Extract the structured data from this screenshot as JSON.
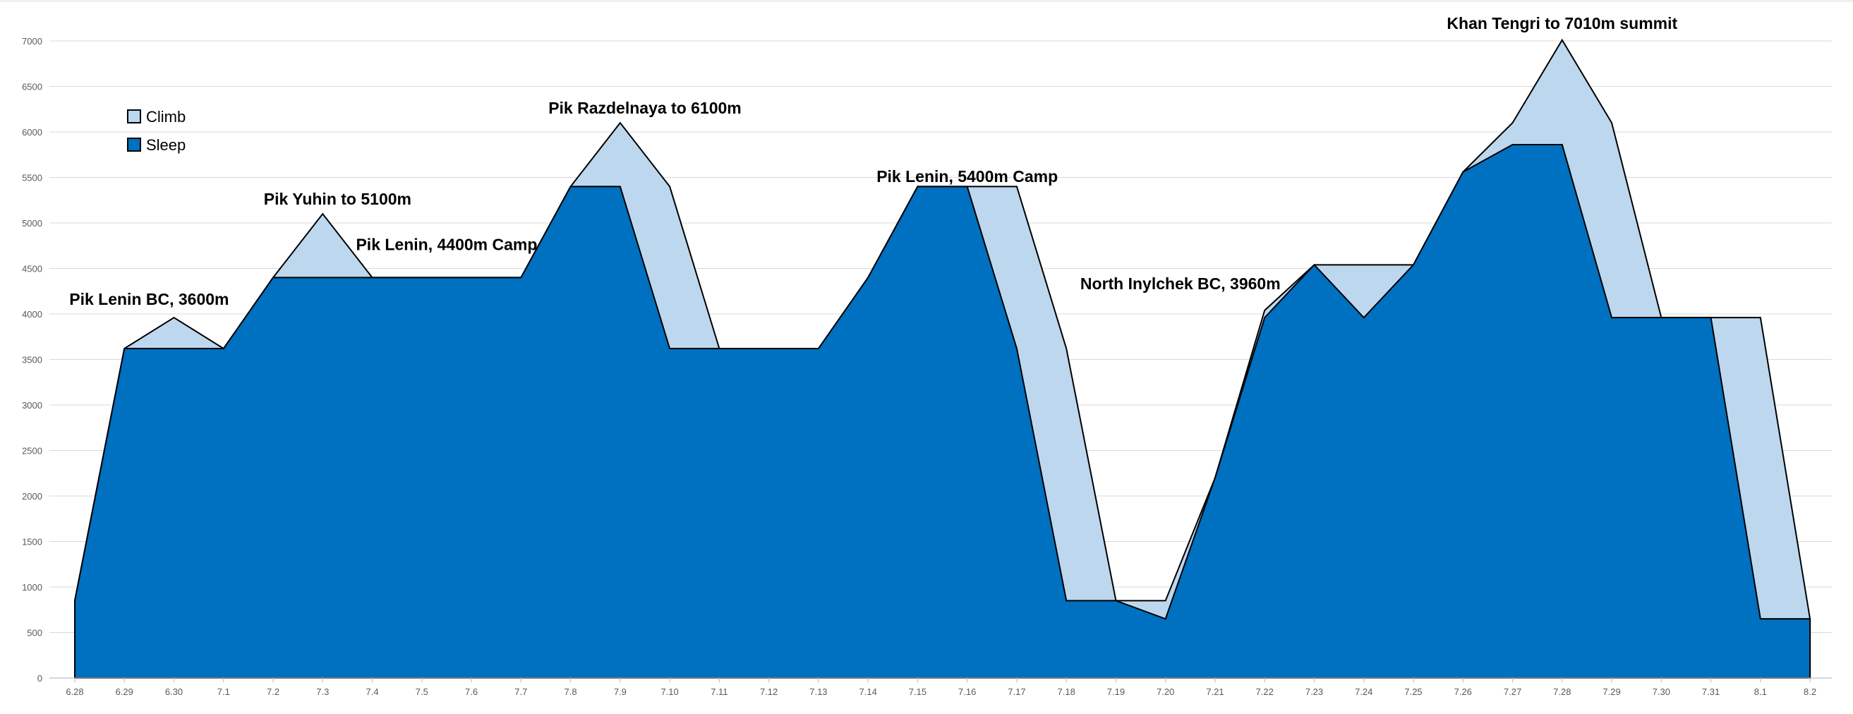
{
  "chart_data": {
    "type": "area",
    "title": "",
    "xlabel": "",
    "ylabel": "",
    "ylim": [
      0,
      7000
    ],
    "yticks": [
      0,
      500,
      1000,
      1500,
      2000,
      2500,
      3000,
      3500,
      4000,
      4500,
      5000,
      5500,
      6000,
      6500,
      7000
    ],
    "grid": true,
    "legend_position": "top-left",
    "categories": [
      "6.28",
      "6.29",
      "6.30",
      "7.1",
      "7.2",
      "7.3",
      "7.4",
      "7.5",
      "7.6",
      "7.7",
      "7.8",
      "7.9",
      "7.10",
      "7.11",
      "7.12",
      "7.13",
      "7.14",
      "7.15",
      "7.16",
      "7.17",
      "7.18",
      "7.19",
      "7.20",
      "7.21",
      "7.22",
      "7.23",
      "7.24",
      "7.25",
      "7.26",
      "7.27",
      "7.28",
      "7.29",
      "7.30",
      "7.31",
      "8.1",
      "8.2"
    ],
    "series": [
      {
        "name": "Climb",
        "color": "#bdd7ee",
        "values": [
          850,
          3620,
          3960,
          3620,
          4400,
          5100,
          4400,
          4400,
          4400,
          4400,
          5400,
          6100,
          5400,
          3620,
          3620,
          3620,
          4400,
          5400,
          5400,
          5400,
          3620,
          850,
          850,
          2200,
          4040,
          4540,
          4540,
          4540,
          5560,
          6100,
          7010,
          6100,
          3960,
          3960,
          3960,
          650
        ],
        "shift": 0.5
      },
      {
        "name": "Sleep",
        "color": "#0070c0",
        "values": [
          850,
          3620,
          3620,
          3620,
          4400,
          4400,
          4400,
          4400,
          4400,
          4400,
          5400,
          5400,
          3620,
          3620,
          3620,
          3620,
          4400,
          5400,
          5400,
          3620,
          850,
          850,
          650,
          2200,
          3960,
          4540,
          3960,
          4540,
          5560,
          5860,
          5860,
          3960,
          3960,
          3960,
          650,
          650
        ],
        "shift": 0
      }
    ],
    "annotations": [
      {
        "text": "Pik Lenin BC, 3600m",
        "x_index": 1.5,
        "y": 4100
      },
      {
        "text": "Pik Yuhin to 5100m",
        "x_index": 5.3,
        "y": 5200
      },
      {
        "text": "Pik Lenin, 4400m Camp",
        "x_index": 7.5,
        "y": 4700
      },
      {
        "text": "Pik Razdelnaya to 6100m",
        "x_index": 11.5,
        "y": 6200
      },
      {
        "text": "Pik Lenin, 5400m Camp",
        "x_index": 18.0,
        "y": 5450
      },
      {
        "text": "North Inylchek BC, 3960m",
        "x_index": 22.3,
        "y": 4270
      },
      {
        "text": "Khan Tengri to 7010m summit",
        "x_index": 30.0,
        "y": 7130
      }
    ]
  }
}
